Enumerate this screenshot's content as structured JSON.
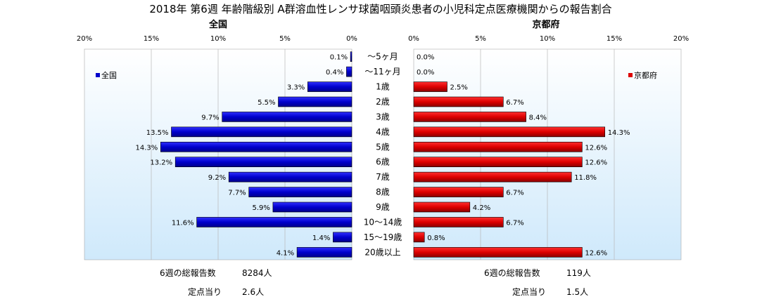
{
  "chart_data": {
    "type": "bar",
    "orientation": "horizontal-butterfly",
    "title": "2018年 第6週 年齢階級別 A群溶血性レンサ球菌咽頭炎患者の小児科定点医療機関からの報告割合",
    "categories": [
      "～5ヶ月",
      "～11ヶ月",
      "1歳",
      "2歳",
      "3歳",
      "4歳",
      "5歳",
      "6歳",
      "7歳",
      "8歳",
      "9歳",
      "10～14歳",
      "15～19歳",
      "20歳以上"
    ],
    "x_ticks": [
      "20%",
      "15%",
      "10%",
      "5%",
      "0%"
    ],
    "x_ticks_right": [
      "0%",
      "5%",
      "10%",
      "15%",
      "20%"
    ],
    "xlim": [
      0,
      20
    ],
    "grid": true,
    "series": [
      {
        "name": "全国",
        "panel_label": "全国",
        "side": "left",
        "color": "#0000cc",
        "values": [
          0.1,
          0.4,
          3.3,
          5.5,
          9.7,
          13.5,
          14.3,
          13.2,
          9.2,
          7.7,
          5.9,
          11.6,
          1.4,
          4.1
        ],
        "labels": [
          "0.1%",
          "0.4%",
          "3.3%",
          "5.5%",
          "9.7%",
          "13.5%",
          "14.3%",
          "13.2%",
          "9.2%",
          "7.7%",
          "5.9%",
          "11.6%",
          "1.4%",
          "4.1%"
        ],
        "legend_position": "top-left"
      },
      {
        "name": "京都府",
        "panel_label": "京都府",
        "side": "right",
        "color": "#dd0000",
        "values": [
          0.0,
          0.0,
          2.5,
          6.7,
          8.4,
          14.3,
          12.6,
          12.6,
          11.8,
          6.7,
          4.2,
          6.7,
          0.8,
          12.6
        ],
        "labels": [
          "0.0%",
          "0.0%",
          "2.5%",
          "6.7%",
          "8.4%",
          "14.3%",
          "12.6%",
          "12.6%",
          "11.8%",
          "6.7%",
          "4.2%",
          "6.7%",
          "0.8%",
          "12.6%"
        ],
        "legend_position": "top-right"
      }
    ]
  },
  "footer": {
    "left": {
      "total_label": "6週の総報告数",
      "total_value": "8284人",
      "per_label": "定点当り",
      "per_value": "2.6人"
    },
    "right": {
      "total_label": "6週の総報告数",
      "total_value": "119人",
      "per_label": "定点当り",
      "per_value": "1.5人"
    }
  }
}
